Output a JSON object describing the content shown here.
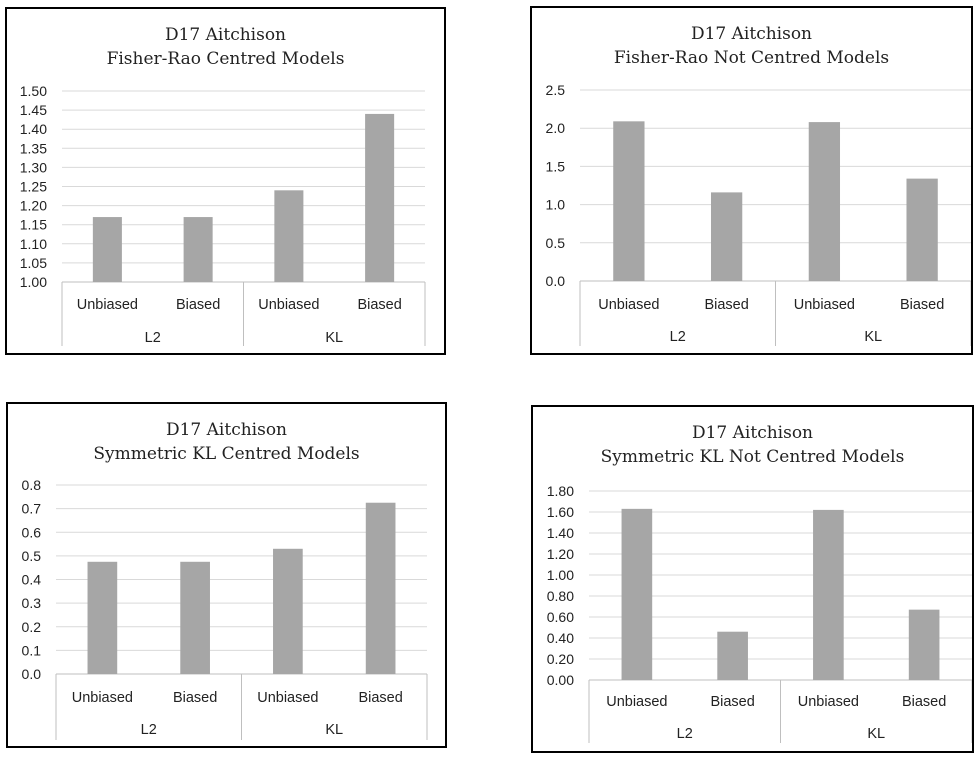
{
  "chart_data": [
    {
      "type": "bar",
      "title": [
        "D17 Aitchison",
        "Fisher-Rao Centred Models"
      ],
      "groups": [
        "L2",
        "KL"
      ],
      "categories": [
        "Unbiased",
        "Biased",
        "Unbiased",
        "Biased"
      ],
      "values": [
        1.17,
        1.17,
        1.24,
        1.44
      ],
      "ylim": [
        1.0,
        1.5
      ],
      "yticks": [
        "1.00",
        "1.05",
        "1.10",
        "1.15",
        "1.20",
        "1.25",
        "1.30",
        "1.35",
        "1.40",
        "1.45",
        "1.50"
      ],
      "bar_color": "#a6a6a6",
      "grid": true
    },
    {
      "type": "bar",
      "title": [
        "D17 Aitchison",
        "Fisher-Rao Not Centred Models"
      ],
      "groups": [
        "L2",
        "KL"
      ],
      "categories": [
        "Unbiased",
        "Biased",
        "Unbiased",
        "Biased"
      ],
      "values": [
        2.09,
        1.16,
        2.08,
        1.34
      ],
      "ylim": [
        0,
        2.5
      ],
      "yticks": [
        "0.0",
        "0.5",
        "1.0",
        "1.5",
        "2.0",
        "2.5"
      ],
      "bar_color": "#a6a6a6",
      "grid": true
    },
    {
      "type": "bar",
      "title": [
        "D17 Aitchison",
        "Symmetric KL Centred Models"
      ],
      "groups": [
        "L2",
        "KL"
      ],
      "categories": [
        "Unbiased",
        "Biased",
        "Unbiased",
        "Biased"
      ],
      "values": [
        0.475,
        0.475,
        0.53,
        0.725
      ],
      "ylim": [
        0,
        0.8
      ],
      "yticks": [
        "0.0",
        "0.1",
        "0.2",
        "0.3",
        "0.4",
        "0.5",
        "0.6",
        "0.7",
        "0.8"
      ],
      "bar_color": "#a6a6a6",
      "grid": true
    },
    {
      "type": "bar",
      "title": [
        "D17 Aitchison",
        "Symmetric KL Not Centred Models"
      ],
      "groups": [
        "L2",
        "KL"
      ],
      "categories": [
        "Unbiased",
        "Biased",
        "Unbiased",
        "Biased"
      ],
      "values": [
        1.63,
        0.46,
        1.62,
        0.67
      ],
      "ylim": [
        0,
        1.8
      ],
      "yticks": [
        "0.00",
        "0.20",
        "0.40",
        "0.60",
        "0.80",
        "1.00",
        "1.20",
        "1.40",
        "1.60",
        "1.80"
      ],
      "bar_color": "#a6a6a6",
      "grid": true
    }
  ]
}
